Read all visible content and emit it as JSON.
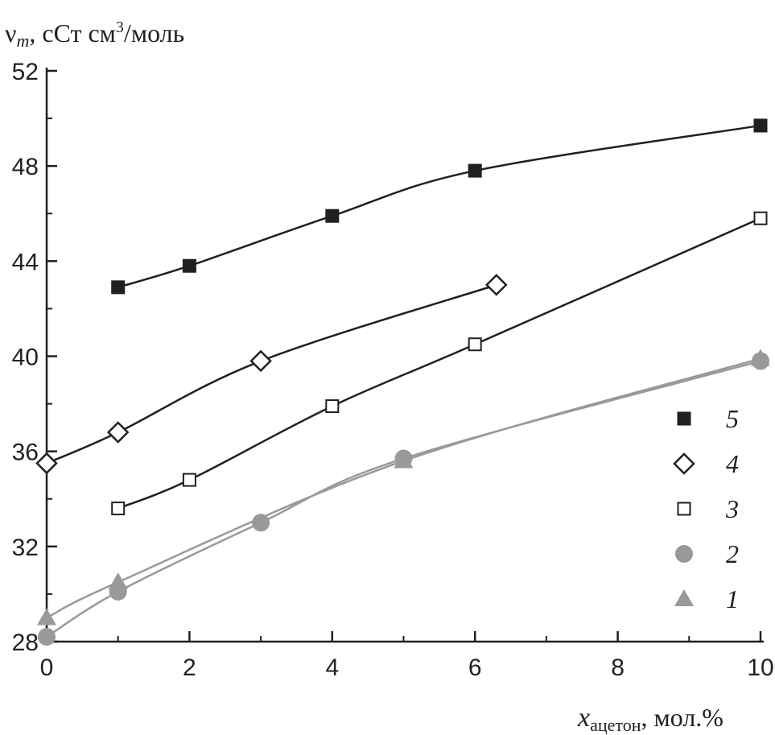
{
  "chart_data": {
    "type": "line",
    "title": "",
    "ylabel": {
      "symbol": "ν",
      "sub": "m",
      "unit": ", сСт см",
      "sup": "3",
      "tail": "/моль"
    },
    "xlabel": {
      "symbol": "x",
      "sub": "ацетон",
      "tail": ", мол.%"
    },
    "xlim": [
      0,
      10
    ],
    "ylim": [
      28,
      52
    ],
    "xticks": [
      0,
      2,
      4,
      6,
      8,
      10
    ],
    "yticks": [
      28,
      32,
      36,
      40,
      44,
      48,
      52
    ],
    "grid": false,
    "legend_placement": "right",
    "series": [
      {
        "name": "5",
        "marker": "filled-square",
        "color": "#231f20",
        "x": [
          1,
          2,
          4,
          6,
          10
        ],
        "y": [
          42.9,
          43.8,
          45.9,
          47.8,
          49.7
        ]
      },
      {
        "name": "4",
        "marker": "open-diamond",
        "color": "#231f20",
        "x": [
          0,
          1,
          3,
          6.3
        ],
        "y": [
          35.5,
          36.8,
          39.8,
          43.0
        ]
      },
      {
        "name": "3",
        "marker": "open-square",
        "color": "#231f20",
        "x": [
          1,
          2,
          4,
          6,
          10
        ],
        "y": [
          33.6,
          34.8,
          37.9,
          40.5,
          45.8
        ]
      },
      {
        "name": "2",
        "marker": "filled-circle",
        "color": "#999999",
        "x": [
          0,
          1,
          3,
          5,
          10
        ],
        "y": [
          28.2,
          30.1,
          33.0,
          35.7,
          39.8
        ]
      },
      {
        "name": "1",
        "marker": "filled-triangle",
        "color": "#999999",
        "x": [
          0,
          1,
          5,
          10
        ],
        "y": [
          29.0,
          30.5,
          35.6,
          39.9
        ]
      }
    ]
  }
}
